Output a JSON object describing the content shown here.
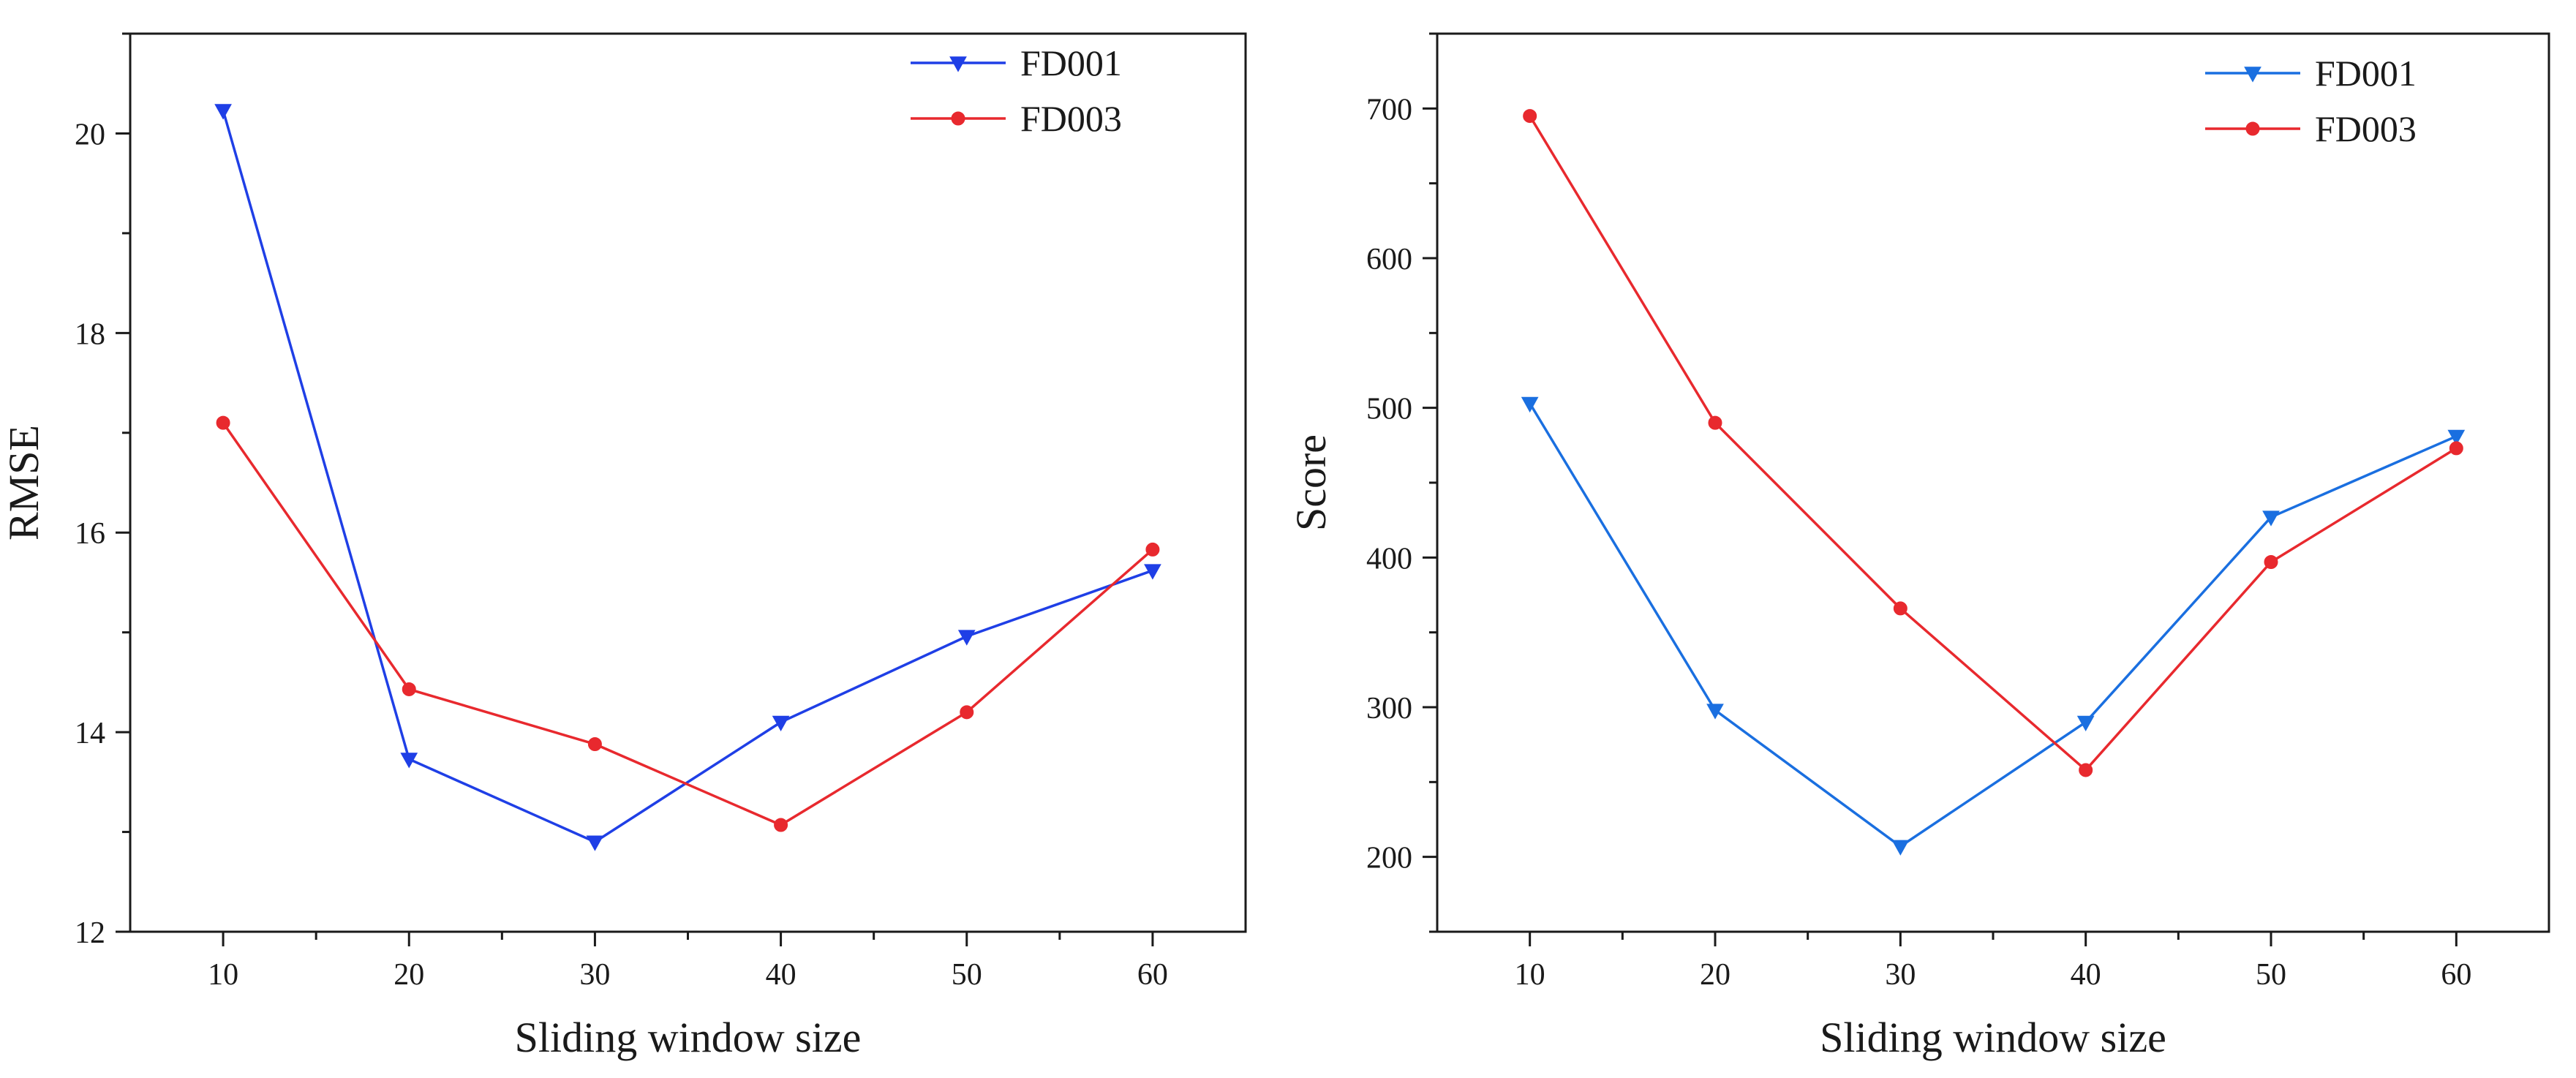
{
  "chart_data": [
    {
      "type": "line",
      "title": "",
      "xlabel": "Sliding window size",
      "ylabel": "RMSE",
      "x": [
        10,
        20,
        30,
        40,
        50,
        60
      ],
      "xticks": [
        10,
        20,
        30,
        40,
        50,
        60
      ],
      "xlim": [
        5,
        65
      ],
      "ylim": [
        12,
        21
      ],
      "yticks": [
        12,
        14,
        16,
        18,
        20
      ],
      "legend": "top-right",
      "series": [
        {
          "name": "FD001",
          "marker": "triangle-down",
          "color": "#1f3fe6",
          "values": [
            20.23,
            13.73,
            12.9,
            14.1,
            14.96,
            15.62
          ]
        },
        {
          "name": "FD003",
          "marker": "circle",
          "color": "#e8292e",
          "values": [
            17.1,
            14.43,
            13.88,
            13.07,
            14.2,
            15.83
          ]
        }
      ]
    },
    {
      "type": "line",
      "title": "",
      "xlabel": "Sliding window size",
      "ylabel": "Score",
      "x": [
        10,
        20,
        30,
        40,
        50,
        60
      ],
      "xticks": [
        10,
        20,
        30,
        40,
        50,
        60
      ],
      "xlim": [
        5,
        65
      ],
      "ylim": [
        150,
        750
      ],
      "yticks": [
        200,
        300,
        400,
        500,
        600,
        700
      ],
      "legend": "top-right",
      "series": [
        {
          "name": "FD001",
          "marker": "triangle-down",
          "color": "#1a6fe0",
          "values": [
            503,
            298,
            207,
            290,
            427,
            481
          ]
        },
        {
          "name": "FD003",
          "marker": "circle",
          "color": "#e8292e",
          "values": [
            695,
            490,
            366,
            258,
            397,
            473
          ]
        }
      ]
    }
  ]
}
